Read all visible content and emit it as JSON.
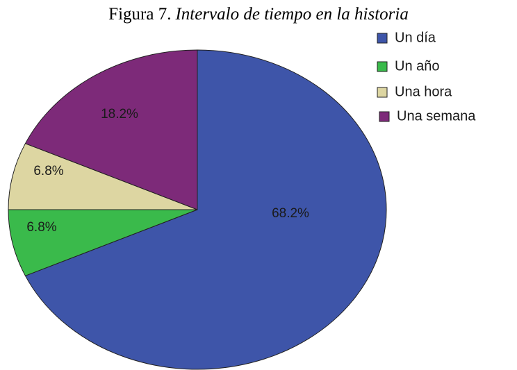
{
  "chart_data": {
    "type": "pie",
    "figure_label": "Figura 7.",
    "title": "Intervalo de tiempo en la historia",
    "categories": [
      "Un día",
      "Un año",
      "Una hora",
      "Una semana"
    ],
    "values": [
      68.2,
      6.8,
      6.8,
      18.2
    ],
    "value_labels": [
      "68.2%",
      "6.8%",
      "6.8%",
      "18.2%"
    ],
    "colors": [
      "#3e55a9",
      "#3aba4b",
      "#ddd6a2",
      "#7d2a79"
    ],
    "legend": "right"
  }
}
